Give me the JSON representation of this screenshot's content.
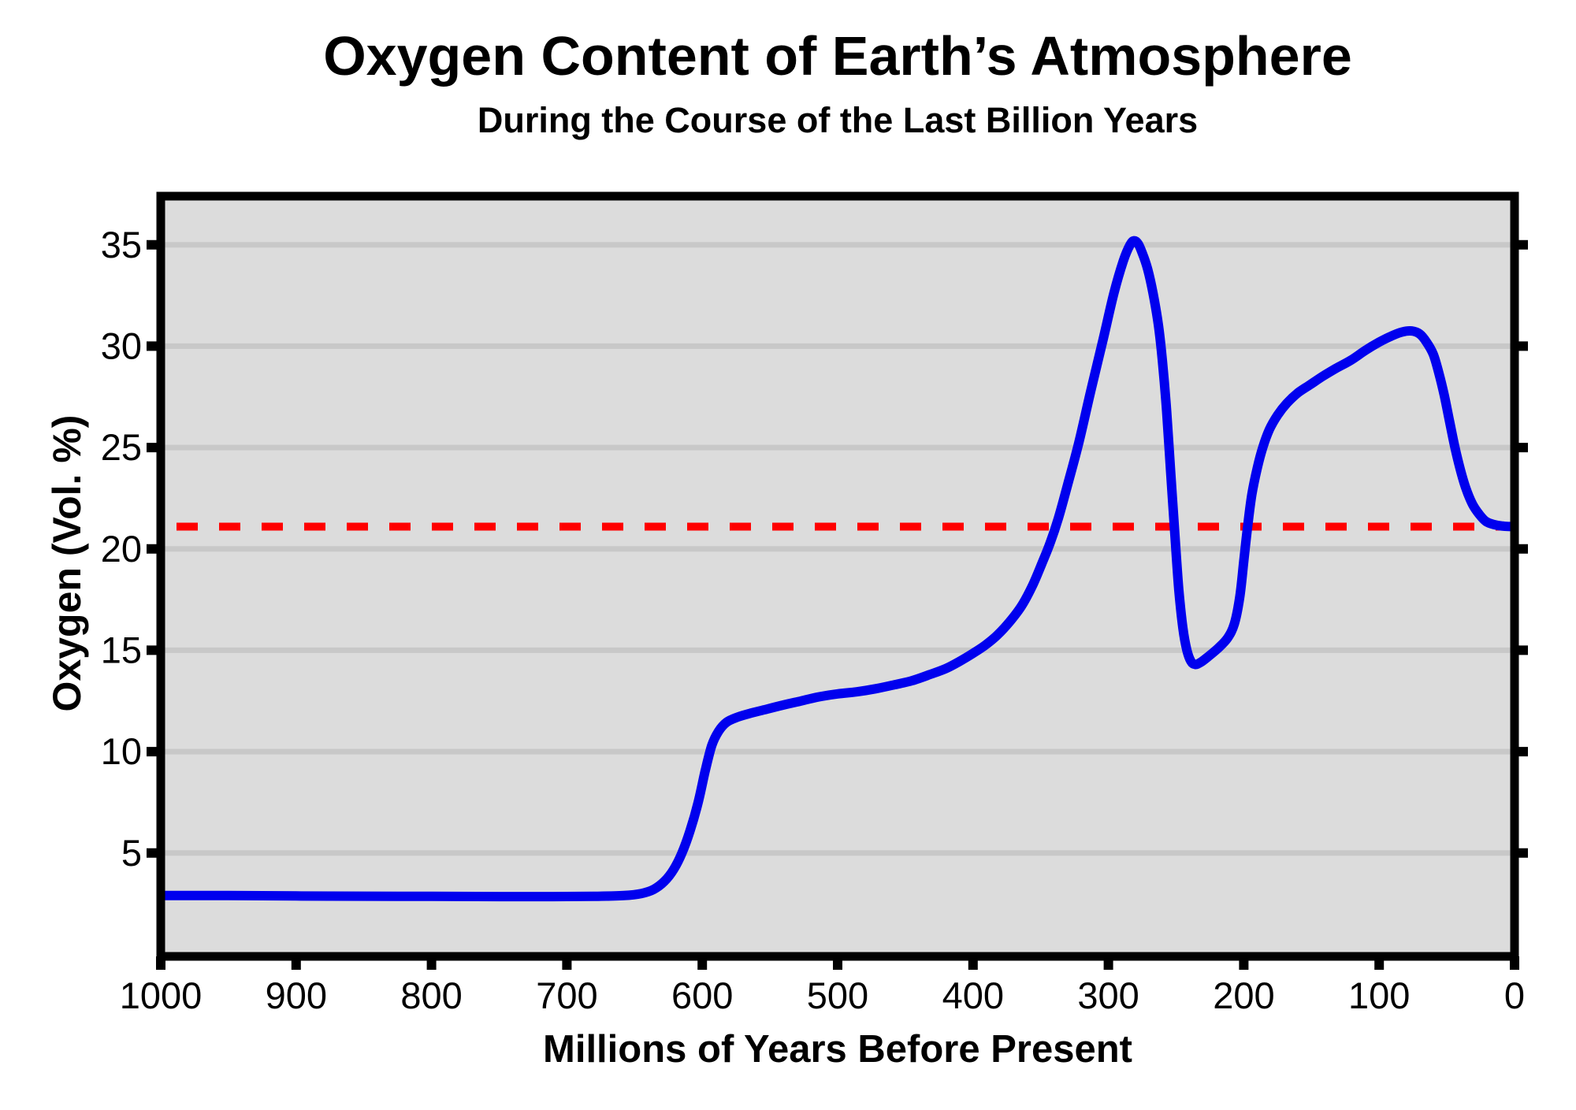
{
  "chart_data": {
    "type": "line",
    "title": "Oxygen Content of Earth’s Atmosphere",
    "subtitle": "During the Course of the Last Billion Years",
    "xlabel": "Millions of Years Before Present",
    "ylabel": "Oxygen (Vol. %)",
    "x_ticks": [
      1000,
      900,
      800,
      700,
      600,
      500,
      400,
      300,
      200,
      100,
      0
    ],
    "y_ticks": [
      5,
      10,
      15,
      20,
      25,
      30,
      35
    ],
    "xlim": [
      1000,
      0
    ],
    "ylim": [
      -0.1,
      37.4
    ],
    "x_axis_reversed": true,
    "grid": "horizontal",
    "legend": "none",
    "plot_bg_color": "#dcdcdc",
    "grid_color": "#c8c8c8",
    "axis_color": "#000000",
    "series": [
      {
        "name": "atmospheric-oxygen-curve",
        "color": "#0000ee",
        "points": [
          [
            1000,
            2.9
          ],
          [
            950,
            2.9
          ],
          [
            900,
            2.88
          ],
          [
            850,
            2.87
          ],
          [
            800,
            2.86
          ],
          [
            750,
            2.85
          ],
          [
            710,
            2.85
          ],
          [
            680,
            2.86
          ],
          [
            658,
            2.9
          ],
          [
            645,
            3.0
          ],
          [
            636,
            3.2
          ],
          [
            628,
            3.6
          ],
          [
            621,
            4.2
          ],
          [
            615,
            5.0
          ],
          [
            609,
            6.1
          ],
          [
            603,
            7.5
          ],
          [
            598,
            9.0
          ],
          [
            593,
            10.3
          ],
          [
            588,
            11.0
          ],
          [
            582,
            11.45
          ],
          [
            574,
            11.7
          ],
          [
            564,
            11.9
          ],
          [
            552,
            12.1
          ],
          [
            540,
            12.3
          ],
          [
            527,
            12.5
          ],
          [
            514,
            12.7
          ],
          [
            500,
            12.85
          ],
          [
            486,
            12.95
          ],
          [
            472,
            13.1
          ],
          [
            458,
            13.3
          ],
          [
            445,
            13.5
          ],
          [
            432,
            13.8
          ],
          [
            420,
            14.1
          ],
          [
            410,
            14.45
          ],
          [
            400,
            14.85
          ],
          [
            391,
            15.25
          ],
          [
            382,
            15.75
          ],
          [
            373,
            16.4
          ],
          [
            364,
            17.2
          ],
          [
            356,
            18.2
          ],
          [
            349,
            19.3
          ],
          [
            343,
            20.3
          ],
          [
            337,
            21.5
          ],
          [
            330,
            23.2
          ],
          [
            322,
            25.2
          ],
          [
            313,
            27.8
          ],
          [
            304,
            30.3
          ],
          [
            296,
            32.6
          ],
          [
            289,
            34.2
          ],
          [
            284,
            35.0
          ],
          [
            281,
            35.2
          ],
          [
            278,
            35.05
          ],
          [
            275,
            34.6
          ],
          [
            271,
            33.8
          ],
          [
            267,
            32.6
          ],
          [
            263,
            31.0
          ],
          [
            260,
            29.2
          ],
          [
            257,
            26.8
          ],
          [
            254,
            23.8
          ],
          [
            251,
            20.8
          ],
          [
            248,
            18.0
          ],
          [
            245,
            16.1
          ],
          [
            242,
            15.0
          ],
          [
            239,
            14.45
          ],
          [
            236,
            14.3
          ],
          [
            232,
            14.4
          ],
          [
            226,
            14.7
          ],
          [
            219,
            15.1
          ],
          [
            212,
            15.6
          ],
          [
            207,
            16.3
          ],
          [
            203,
            17.6
          ],
          [
            200,
            19.4
          ],
          [
            197,
            21.2
          ],
          [
            194,
            22.7
          ],
          [
            190,
            24.0
          ],
          [
            186,
            25.0
          ],
          [
            181,
            25.9
          ],
          [
            175,
            26.6
          ],
          [
            168,
            27.2
          ],
          [
            160,
            27.7
          ],
          [
            151,
            28.1
          ],
          [
            142,
            28.5
          ],
          [
            132,
            28.9
          ],
          [
            121,
            29.3
          ],
          [
            110,
            29.8
          ],
          [
            100,
            30.2
          ],
          [
            91,
            30.5
          ],
          [
            83,
            30.7
          ],
          [
            76,
            30.75
          ],
          [
            70,
            30.6
          ],
          [
            65,
            30.2
          ],
          [
            60,
            29.6
          ],
          [
            56,
            28.7
          ],
          [
            52,
            27.6
          ],
          [
            48,
            26.3
          ],
          [
            44,
            25.0
          ],
          [
            40,
            23.9
          ],
          [
            36,
            23.0
          ],
          [
            31,
            22.2
          ],
          [
            26,
            21.7
          ],
          [
            21,
            21.35
          ],
          [
            15,
            21.2
          ],
          [
            8,
            21.12
          ],
          [
            0,
            21.1
          ]
        ]
      }
    ],
    "reference_line": {
      "name": "present-day-oxygen-level",
      "value": 21.1,
      "color": "#ff0000",
      "style": "dashed"
    }
  }
}
